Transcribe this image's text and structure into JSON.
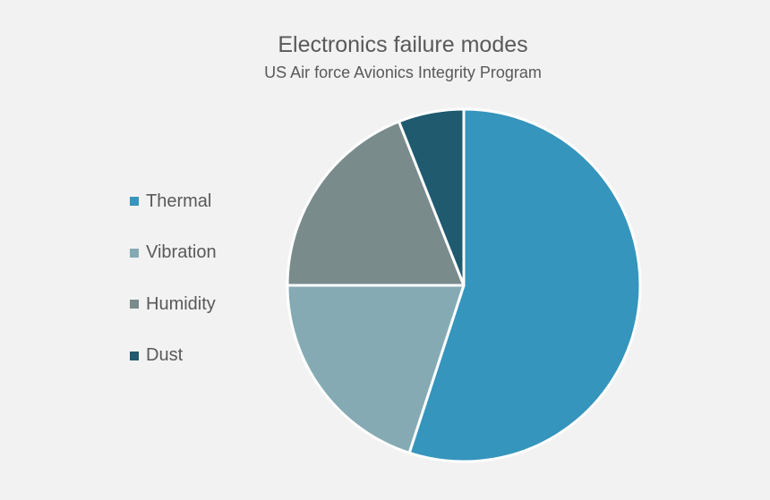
{
  "chart_data": {
    "type": "pie",
    "title": "Electronics failure modes",
    "subtitle": "US Air force Avionics Integrity Program",
    "categories": [
      "Thermal",
      "Vibration",
      "Humidity",
      "Dust"
    ],
    "values": [
      55,
      20,
      19,
      6
    ],
    "colors": [
      "#3595bc",
      "#85aab4",
      "#7a8b8c",
      "#1f5a6e"
    ],
    "start_angle_deg": 0,
    "direction": "clockwise",
    "legend_position": "left"
  }
}
